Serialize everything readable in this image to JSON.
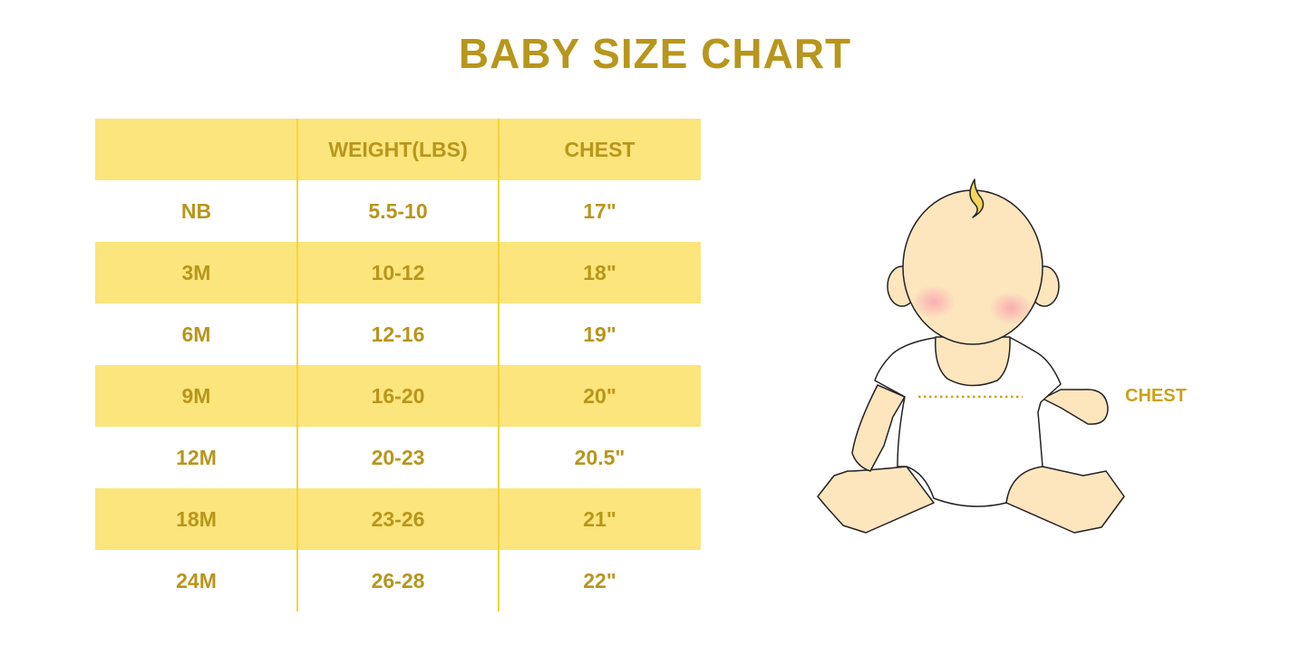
{
  "title": "BABY SIZE CHART",
  "table": {
    "headers": [
      "",
      "WEIGHT(LBS)",
      "CHEST"
    ],
    "rows": [
      [
        "NB",
        "5.5-10",
        "17\""
      ],
      [
        "3M",
        "10-12",
        "18\""
      ],
      [
        "6M",
        "12-16",
        "19\""
      ],
      [
        "9M",
        "16-20",
        "20\""
      ],
      [
        "12M",
        "20-23",
        "20.5\""
      ],
      [
        "18M",
        "23-26",
        "21\""
      ],
      [
        "24M",
        "26-28",
        "22\""
      ]
    ]
  },
  "illustration": {
    "chest_label": "CHEST"
  },
  "colors": {
    "text": "#b8961c",
    "band": "#fbe57c",
    "divider": "#f6d33a",
    "skin": "#fde5be"
  }
}
